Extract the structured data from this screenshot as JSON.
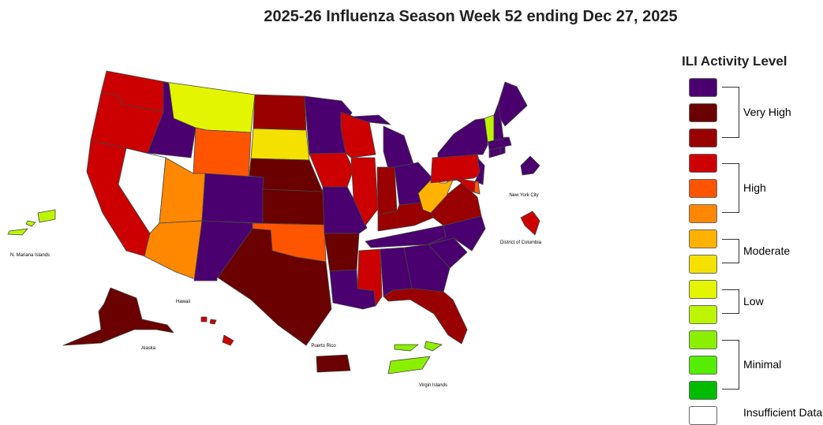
{
  "title": "2025-26 Influenza Season Week 52 ending Dec 27, 2025",
  "legend": {
    "title": "ILI Activity Level",
    "levels": [
      {
        "color": "#4B0070"
      },
      {
        "color": "#6B0000"
      },
      {
        "color": "#990000"
      },
      {
        "color": "#CC0000"
      },
      {
        "color": "#FF5500"
      },
      {
        "color": "#FF8800"
      },
      {
        "color": "#FFB300"
      },
      {
        "color": "#F5E100"
      },
      {
        "color": "#E3F500"
      },
      {
        "color": "#BDF500"
      },
      {
        "color": "#8BF000"
      },
      {
        "color": "#55EE00"
      },
      {
        "color": "#00BB00"
      },
      {
        "color": "#FFFFFF"
      }
    ],
    "groups": [
      {
        "label": "Very High"
      },
      {
        "label": "High"
      },
      {
        "label": "Moderate"
      },
      {
        "label": "Low"
      },
      {
        "label": "Minimal"
      },
      {
        "label": "Insufficient Data"
      }
    ]
  },
  "map": {
    "territory_labels": {
      "mariana": "N. Mariana Islands",
      "hawaii": "Hawaii",
      "alaska": "Alaska",
      "puerto_rico": "Puerto Rico",
      "virgin_islands": "Virgin Islands",
      "nyc": "New York City",
      "dc": "District of Columbia"
    },
    "regions": [
      {
        "id": "WA",
        "level": 3
      },
      {
        "id": "OR",
        "level": 3
      },
      {
        "id": "CA",
        "level": 3
      },
      {
        "id": "NV",
        "level": 13
      },
      {
        "id": "ID",
        "level": 0
      },
      {
        "id": "MT",
        "level": 8
      },
      {
        "id": "WY",
        "level": 4
      },
      {
        "id": "UT",
        "level": 5
      },
      {
        "id": "AZ",
        "level": 5
      },
      {
        "id": "CO",
        "level": 0
      },
      {
        "id": "NM",
        "level": 0
      },
      {
        "id": "ND",
        "level": 2
      },
      {
        "id": "SD",
        "level": 7
      },
      {
        "id": "NE",
        "level": 1
      },
      {
        "id": "KS",
        "level": 1
      },
      {
        "id": "OK",
        "level": 4
      },
      {
        "id": "TX",
        "level": 1
      },
      {
        "id": "MN",
        "level": 0
      },
      {
        "id": "IA",
        "level": 3
      },
      {
        "id": "MO",
        "level": 0
      },
      {
        "id": "AR",
        "level": 1
      },
      {
        "id": "LA",
        "level": 0
      },
      {
        "id": "WI",
        "level": 3
      },
      {
        "id": "IL",
        "level": 3
      },
      {
        "id": "MI",
        "level": 0
      },
      {
        "id": "IN",
        "level": 2
      },
      {
        "id": "OH",
        "level": 0
      },
      {
        "id": "KY",
        "level": 2
      },
      {
        "id": "TN",
        "level": 0
      },
      {
        "id": "MS",
        "level": 3
      },
      {
        "id": "AL",
        "level": 0
      },
      {
        "id": "GA",
        "level": 0
      },
      {
        "id": "FL",
        "level": 2
      },
      {
        "id": "SC",
        "level": 0
      },
      {
        "id": "NC",
        "level": 0
      },
      {
        "id": "VA",
        "level": 2
      },
      {
        "id": "WV",
        "level": 6
      },
      {
        "id": "PA",
        "level": 3
      },
      {
        "id": "NY",
        "level": 0
      },
      {
        "id": "NJ",
        "level": 0
      },
      {
        "id": "DE",
        "level": 4
      },
      {
        "id": "MD",
        "level": 3
      },
      {
        "id": "CT",
        "level": 0
      },
      {
        "id": "RI",
        "level": 0
      },
      {
        "id": "MA",
        "level": 0
      },
      {
        "id": "VT",
        "level": 9
      },
      {
        "id": "NH",
        "level": 0
      },
      {
        "id": "ME",
        "level": 0
      },
      {
        "id": "AK",
        "level": 1
      },
      {
        "id": "HI",
        "level": 3
      },
      {
        "id": "PR",
        "level": 1
      },
      {
        "id": "VI",
        "level": 10
      },
      {
        "id": "MP",
        "level": 9
      },
      {
        "id": "NYC",
        "level": 0
      },
      {
        "id": "DC",
        "level": 3
      }
    ]
  }
}
